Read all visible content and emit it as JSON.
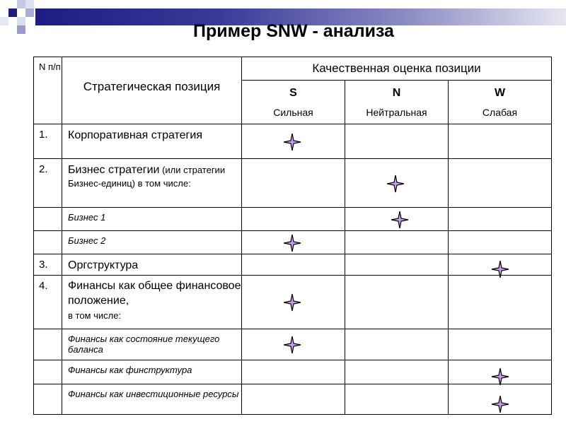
{
  "title": "Пример  SNW  - анализа",
  "header": {
    "num": "N п/п",
    "position": "Стратегическая позиция",
    "assessment": "Качественная оценка позиции",
    "columns": [
      {
        "code": "S",
        "label": "Сильная"
      },
      {
        "code": "N",
        "label": "Нейтральная"
      },
      {
        "code": "W",
        "label": "Слабая"
      }
    ]
  },
  "rows": [
    {
      "num": "1.",
      "label": "Корпоративная стратегия",
      "note": "",
      "sub": false,
      "mark": "S"
    },
    {
      "num": "2.",
      "label": "Бизнес стратегии",
      "note": " (или стратегии Бизнес-единиц) в том числе:",
      "sub": false,
      "mark": "N"
    },
    {
      "num": "",
      "label": "Бизнес 1",
      "note": "",
      "sub": true,
      "mark": "N"
    },
    {
      "num": "",
      "label": "Бизнес 2",
      "note": "",
      "sub": true,
      "mark": "S"
    },
    {
      "num": "3.",
      "label": "Оргструктура",
      "note": "",
      "sub": false,
      "mark": "W"
    },
    {
      "num": "4.",
      "label": "Финансы как общее финансовое положение,",
      "note": "в том числе:",
      "sub": false,
      "mark": "S"
    },
    {
      "num": "",
      "label": "Финансы как состояние текущего баланса",
      "note": "",
      "sub": true,
      "mark": "S"
    },
    {
      "num": "",
      "label": "Финансы как финструктура",
      "note": "",
      "sub": true,
      "mark": "W"
    },
    {
      "num": "",
      "label": "Финансы как инвестиционные ресурсы",
      "note": "",
      "sub": true,
      "mark": "W"
    }
  ],
  "colors": {
    "star_fill": "#c9a0f0",
    "band_dark": "#1c1c82"
  },
  "icons": {
    "mark": "four-point-star-icon"
  }
}
